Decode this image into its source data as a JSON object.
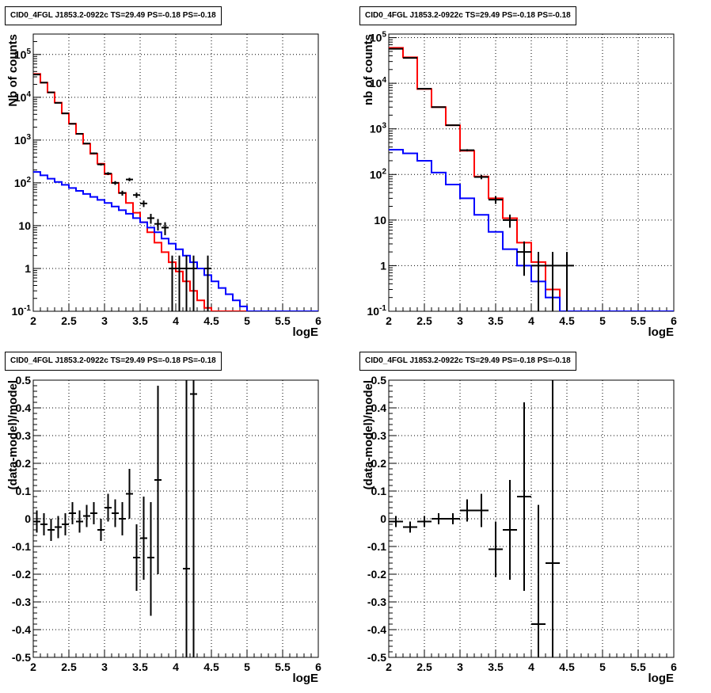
{
  "chart_data": [
    {
      "type": "line",
      "title": "CID0_4FGL J1853.2-0922c TS=29.49 PS=-0.18 PS=-0.18",
      "xlabel": "logE",
      "ylabel": "Nb of counts",
      "ylog": true,
      "xlim": [
        2,
        6
      ],
      "ylim": [
        0.1,
        300000
      ],
      "grid": true,
      "x_ticks": [
        "2",
        "2.5",
        "3",
        "3.5",
        "4",
        "4.5",
        "5",
        "5.5",
        "6"
      ],
      "y_ticks": [
        {
          "label": "10^-1",
          "value": 0.1
        },
        {
          "label": "1",
          "value": 1
        },
        {
          "label": "10",
          "value": 10
        },
        {
          "label": "10^2",
          "value": 100
        },
        {
          "label": "10^3",
          "value": 1000
        },
        {
          "label": "10^4",
          "value": 10000
        },
        {
          "label": "10^5",
          "value": 100000
        }
      ],
      "bin_edges": [
        2.0,
        2.1,
        2.2,
        2.3,
        2.4,
        2.5,
        2.6,
        2.7,
        2.8,
        2.9,
        3.0,
        3.1,
        3.2,
        3.3,
        3.4,
        3.5,
        3.6,
        3.7,
        3.8,
        3.9,
        4.0,
        4.1,
        4.2,
        4.3,
        4.4,
        4.5,
        4.6,
        4.7,
        4.8,
        4.9,
        5.0,
        5.1,
        5.2,
        5.3,
        5.4,
        5.5,
        5.6,
        5.7,
        5.8,
        5.9,
        6.0
      ],
      "series": [
        {
          "color": "#ff0000",
          "values": [
            35000,
            22000,
            13000,
            7500,
            4200,
            2400,
            1400,
            820,
            480,
            280,
            160,
            100,
            58,
            34,
            20,
            12,
            7,
            4,
            2.4,
            1.4,
            0.85,
            0.5,
            0.3,
            0.18,
            0.12,
            0.1,
            0.1,
            0.1,
            0.1,
            0.1,
            0.1,
            0.1,
            0.1,
            0.1,
            0.1,
            0.1,
            0.1,
            0.1,
            0.1,
            0.1
          ]
        },
        {
          "color": "#0000ff",
          "values": [
            180,
            150,
            125,
            105,
            90,
            76,
            65,
            55,
            47,
            40,
            34,
            28,
            23,
            19,
            15,
            12,
            9,
            7,
            5,
            3.8,
            2.8,
            2,
            1.4,
            1,
            0.7,
            0.5,
            0.35,
            0.25,
            0.18,
            0.13,
            0.1,
            0.1,
            0.1,
            0.1,
            0.1,
            0.1,
            0.1,
            0.1,
            0.1,
            0.1
          ]
        }
      ],
      "points": [
        {
          "x": 2.05,
          "y": 34000,
          "err": [
            185,
            185
          ]
        },
        {
          "x": 2.15,
          "y": 22000,
          "err": [
            148,
            148
          ]
        },
        {
          "x": 2.25,
          "y": 13000,
          "err": [
            114,
            114
          ]
        },
        {
          "x": 2.35,
          "y": 7400,
          "err": [
            86,
            86
          ]
        },
        {
          "x": 2.45,
          "y": 4200,
          "err": [
            65,
            65
          ]
        },
        {
          "x": 2.55,
          "y": 2400,
          "err": [
            49,
            49
          ]
        },
        {
          "x": 2.65,
          "y": 1400,
          "err": [
            37,
            37
          ]
        },
        {
          "x": 2.75,
          "y": 830,
          "err": [
            29,
            29
          ]
        },
        {
          "x": 2.85,
          "y": 490,
          "err": [
            22,
            22
          ]
        },
        {
          "x": 2.95,
          "y": 270,
          "err": [
            16,
            16
          ]
        },
        {
          "x": 3.05,
          "y": 165,
          "err": [
            13,
            13
          ]
        },
        {
          "x": 3.15,
          "y": 100,
          "err": [
            10,
            10
          ]
        },
        {
          "x": 3.25,
          "y": 58,
          "err": [
            7.6,
            7.6
          ]
        },
        {
          "x": 3.35,
          "y": 120,
          "err": [
            11,
            11
          ]
        },
        {
          "x": 3.45,
          "y": 52,
          "err": [
            7.2,
            7.2
          ]
        },
        {
          "x": 3.55,
          "y": 33,
          "err": [
            5.7,
            5.7
          ]
        },
        {
          "x": 3.65,
          "y": 15,
          "err": [
            3.9,
            3.9
          ]
        },
        {
          "x": 3.75,
          "y": 11,
          "err": [
            3.3,
            3.3
          ]
        },
        {
          "x": 3.85,
          "y": 9,
          "err": [
            3,
            3
          ]
        },
        {
          "x": 3.95,
          "y": 1,
          "err": [
            0.95,
            1
          ]
        },
        {
          "x": 4.05,
          "y": 1,
          "err": [
            0.95,
            1
          ]
        },
        {
          "x": 4.15,
          "y": 1,
          "err": [
            0.95,
            1
          ]
        },
        {
          "x": 4.25,
          "y": 1,
          "err": [
            0.95,
            1
          ]
        },
        {
          "x": 4.45,
          "y": 1,
          "err": [
            0.95,
            1
          ]
        }
      ]
    },
    {
      "type": "line",
      "title": "CID0_4FGL J1853.2-0922c TS=29.49 PS=-0.18 PS=-0.18",
      "xlabel": "logE",
      "ylabel": "nb of counts",
      "ylog": true,
      "xlim": [
        2,
        6
      ],
      "ylim": [
        0.1,
        120000
      ],
      "grid": true,
      "x_ticks": [
        "2",
        "2.5",
        "3",
        "3.5",
        "4",
        "4.5",
        "5",
        "5.5",
        "6"
      ],
      "y_ticks": [
        {
          "label": "10^-1",
          "value": 0.1
        },
        {
          "label": "1",
          "value": 1
        },
        {
          "label": "10",
          "value": 10
        },
        {
          "label": "10^2",
          "value": 100
        },
        {
          "label": "10^3",
          "value": 1000
        },
        {
          "label": "10^4",
          "value": 10000
        },
        {
          "label": "10^5",
          "value": 100000
        }
      ],
      "bin_edges": [
        2.0,
        2.2,
        2.4,
        2.6,
        2.8,
        3.0,
        3.2,
        3.4,
        3.6,
        3.8,
        4.0,
        4.2,
        4.4,
        4.6,
        4.8,
        5.0,
        5.2,
        5.4,
        5.6,
        5.8,
        6.0
      ],
      "series": [
        {
          "color": "#ff0000",
          "values": [
            60000,
            37000,
            7500,
            3000,
            1200,
            330,
            90,
            30,
            11,
            3.2,
            1.2,
            0.3,
            0.1,
            0.1,
            0.1,
            0.1,
            0.1,
            0.1,
            0.1,
            0.1
          ]
        },
        {
          "color": "#0000ff",
          "values": [
            350,
            290,
            200,
            110,
            60,
            30,
            13,
            5.5,
            2.3,
            1,
            0.45,
            0.2,
            0.1,
            0.1,
            0.1,
            0.1,
            0.1,
            0.1,
            0.1,
            0.1
          ]
        }
      ],
      "points": [
        {
          "x": 2.1,
          "y": 57000,
          "err": [
            240,
            240
          ]
        },
        {
          "x": 2.3,
          "y": 36000,
          "err": [
            190,
            190
          ]
        },
        {
          "x": 2.5,
          "y": 7600,
          "err": [
            87,
            87
          ]
        },
        {
          "x": 2.7,
          "y": 3000,
          "err": [
            55,
            55
          ]
        },
        {
          "x": 2.9,
          "y": 1200,
          "err": [
            35,
            35
          ]
        },
        {
          "x": 3.1,
          "y": 340,
          "err": [
            18,
            18
          ]
        },
        {
          "x": 3.3,
          "y": 88,
          "err": [
            9.4,
            9.4
          ]
        },
        {
          "x": 3.5,
          "y": 28,
          "err": [
            5.3,
            5.3
          ]
        },
        {
          "x": 3.7,
          "y": 10,
          "err": [
            3.2,
            3.2
          ]
        },
        {
          "x": 3.9,
          "y": 2,
          "err": [
            1.4,
            1.4
          ]
        },
        {
          "x": 4.1,
          "y": 1,
          "err": [
            0.95,
            1
          ]
        },
        {
          "x": 4.3,
          "y": 1,
          "err": [
            0.95,
            1
          ]
        },
        {
          "x": 4.5,
          "y": 1,
          "err": [
            0.95,
            1
          ]
        }
      ]
    },
    {
      "type": "scatter",
      "title": "CID0_4FGL J1853.2-0922c TS=29.49 PS=-0.18 PS=-0.18",
      "xlabel": "logE",
      "ylabel": "(data-model)/model",
      "ylog": false,
      "xlim": [
        2,
        6
      ],
      "ylim": [
        -0.5,
        0.5
      ],
      "grid": true,
      "x_ticks": [
        "2",
        "2.5",
        "3",
        "3.5",
        "4",
        "4.5",
        "5",
        "5.5",
        "6"
      ],
      "y_ticks": [
        {
          "label": "-0.5",
          "value": -0.5
        },
        {
          "label": "-0.4",
          "value": -0.4
        },
        {
          "label": "-0.3",
          "value": -0.3
        },
        {
          "label": "-0.2",
          "value": -0.2
        },
        {
          "label": "-0.1",
          "value": -0.1
        },
        {
          "label": "0",
          "value": 0
        },
        {
          "label": "0.1",
          "value": 0.1
        },
        {
          "label": "0.2",
          "value": 0.2
        },
        {
          "label": "0.3",
          "value": 0.3
        },
        {
          "label": "0.4",
          "value": 0.4
        },
        {
          "label": "0.5",
          "value": 0.5
        }
      ],
      "xerr": 0.05,
      "points": [
        {
          "x": 2.05,
          "y": -0.01,
          "err": [
            0.04,
            0.04
          ]
        },
        {
          "x": 2.15,
          "y": -0.02,
          "err": [
            0.04,
            0.04
          ]
        },
        {
          "x": 2.25,
          "y": -0.04,
          "err": [
            0.04,
            0.04
          ]
        },
        {
          "x": 2.35,
          "y": -0.03,
          "err": [
            0.04,
            0.04
          ]
        },
        {
          "x": 2.45,
          "y": -0.02,
          "err": [
            0.04,
            0.04
          ]
        },
        {
          "x": 2.55,
          "y": 0.02,
          "err": [
            0.04,
            0.04
          ]
        },
        {
          "x": 2.65,
          "y": -0.01,
          "err": [
            0.04,
            0.04
          ]
        },
        {
          "x": 2.75,
          "y": 0.01,
          "err": [
            0.04,
            0.04
          ]
        },
        {
          "x": 2.85,
          "y": 0.02,
          "err": [
            0.04,
            0.04
          ]
        },
        {
          "x": 2.95,
          "y": -0.04,
          "err": [
            0.04,
            0.04
          ]
        },
        {
          "x": 3.05,
          "y": 0.04,
          "err": [
            0.05,
            0.05
          ]
        },
        {
          "x": 3.15,
          "y": 0.02,
          "err": [
            0.05,
            0.05
          ]
        },
        {
          "x": 3.25,
          "y": 0.0,
          "err": [
            0.06,
            0.06
          ]
        },
        {
          "x": 3.35,
          "y": 0.09,
          "err": [
            0.09,
            0.09
          ]
        },
        {
          "x": 3.45,
          "y": -0.14,
          "err": [
            0.12,
            0.12
          ]
        },
        {
          "x": 3.55,
          "y": -0.07,
          "err": [
            0.15,
            0.15
          ]
        },
        {
          "x": 3.65,
          "y": -0.14,
          "err": [
            0.21,
            0.2
          ]
        },
        {
          "x": 3.75,
          "y": 0.14,
          "err": [
            0.34,
            0.34
          ]
        },
        {
          "x": 4.15,
          "y": -0.18,
          "err": [
            0.9,
            0.9
          ]
        },
        {
          "x": 4.25,
          "y": 0.45,
          "err": [
            1.0,
            1.0
          ]
        }
      ]
    },
    {
      "type": "scatter",
      "title": "CID0_4FGL J1853.2-0922c TS=29.49 PS=-0.18 PS=-0.18",
      "xlabel": "logE",
      "ylabel": "(data-model)/model",
      "ylog": false,
      "xlim": [
        2,
        6
      ],
      "ylim": [
        -0.5,
        0.5
      ],
      "grid": true,
      "x_ticks": [
        "2",
        "2.5",
        "3",
        "3.5",
        "4",
        "4.5",
        "5",
        "5.5",
        "6"
      ],
      "y_ticks": [
        {
          "label": "-0.5",
          "value": -0.5
        },
        {
          "label": "-0.4",
          "value": -0.4
        },
        {
          "label": "-0.3",
          "value": -0.3
        },
        {
          "label": "-0.2",
          "value": -0.2
        },
        {
          "label": "-0.1",
          "value": -0.1
        },
        {
          "label": "0",
          "value": 0
        },
        {
          "label": "0.1",
          "value": 0.1
        },
        {
          "label": "0.2",
          "value": 0.2
        },
        {
          "label": "0.3",
          "value": 0.3
        },
        {
          "label": "0.4",
          "value": 0.4
        },
        {
          "label": "0.5",
          "value": 0.5
        }
      ],
      "xerr": 0.1,
      "points": [
        {
          "x": 2.1,
          "y": -0.01,
          "err": [
            0.02,
            0.02
          ]
        },
        {
          "x": 2.3,
          "y": -0.03,
          "err": [
            0.02,
            0.02
          ]
        },
        {
          "x": 2.5,
          "y": -0.01,
          "err": [
            0.02,
            0.02
          ]
        },
        {
          "x": 2.7,
          "y": 0.0,
          "err": [
            0.02,
            0.02
          ]
        },
        {
          "x": 2.9,
          "y": 0.0,
          "err": [
            0.02,
            0.02
          ]
        },
        {
          "x": 3.1,
          "y": 0.03,
          "err": [
            0.04,
            0.04
          ]
        },
        {
          "x": 3.3,
          "y": 0.03,
          "err": [
            0.06,
            0.06
          ]
        },
        {
          "x": 3.5,
          "y": -0.11,
          "err": [
            0.1,
            0.1
          ]
        },
        {
          "x": 3.7,
          "y": -0.04,
          "err": [
            0.18,
            0.18
          ]
        },
        {
          "x": 3.9,
          "y": 0.08,
          "err": [
            0.34,
            0.34
          ]
        },
        {
          "x": 4.1,
          "y": -0.38,
          "err": [
            0.6,
            0.43
          ]
        },
        {
          "x": 4.3,
          "y": -0.16,
          "err": [
            0.8,
            0.8
          ]
        }
      ]
    }
  ]
}
